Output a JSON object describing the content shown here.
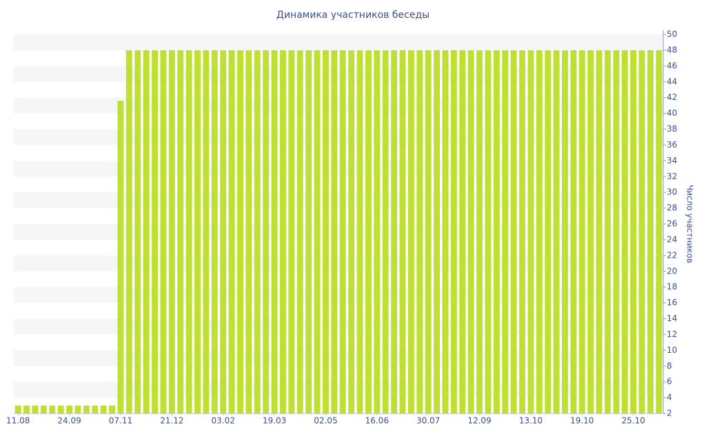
{
  "chart_data": {
    "type": "bar",
    "title": "Динамика участников беседы",
    "y_axis_label": "Число участников",
    "categories": [
      "11.08",
      null,
      null,
      null,
      null,
      null,
      "24.09",
      null,
      null,
      null,
      null,
      null,
      "07.11",
      null,
      null,
      null,
      null,
      null,
      "21.12",
      null,
      null,
      null,
      null,
      null,
      "03.02",
      null,
      null,
      null,
      null,
      null,
      "19.03",
      null,
      null,
      null,
      null,
      null,
      "02.05",
      null,
      null,
      null,
      null,
      null,
      "16.06",
      null,
      null,
      null,
      null,
      null,
      "30.07",
      null,
      null,
      null,
      null,
      null,
      "12.09",
      null,
      null,
      null,
      null,
      null,
      "13.10",
      null,
      null,
      null,
      null,
      null,
      "19.10",
      null,
      null,
      null,
      null,
      null,
      "25.10",
      null,
      null,
      null
    ],
    "values": [
      3,
      3,
      3,
      3,
      3,
      3,
      3,
      3,
      3,
      3,
      3,
      3,
      41.6,
      48,
      48,
      48,
      48,
      48,
      48,
      48,
      48,
      48,
      48,
      48,
      48,
      48,
      48,
      48,
      48,
      48,
      48,
      48,
      48,
      48,
      48,
      48,
      48,
      48,
      48,
      48,
      48,
      48,
      48,
      48,
      48,
      48,
      48,
      48,
      48,
      48,
      48,
      48,
      48,
      48,
      48,
      48,
      48,
      48,
      48,
      48,
      48,
      48,
      48,
      48,
      48,
      48,
      48,
      48,
      48,
      48,
      48,
      48,
      48,
      48,
      48,
      48
    ],
    "color": "#bfe033",
    "ylim": [
      2,
      50
    ],
    "yticks": [
      2,
      4,
      6,
      8,
      10,
      12,
      14,
      16,
      18,
      20,
      22,
      24,
      26,
      28,
      30,
      32,
      34,
      36,
      38,
      40,
      42,
      44,
      46,
      48,
      50
    ],
    "y_axis_side": "right",
    "grid_bands": true
  }
}
